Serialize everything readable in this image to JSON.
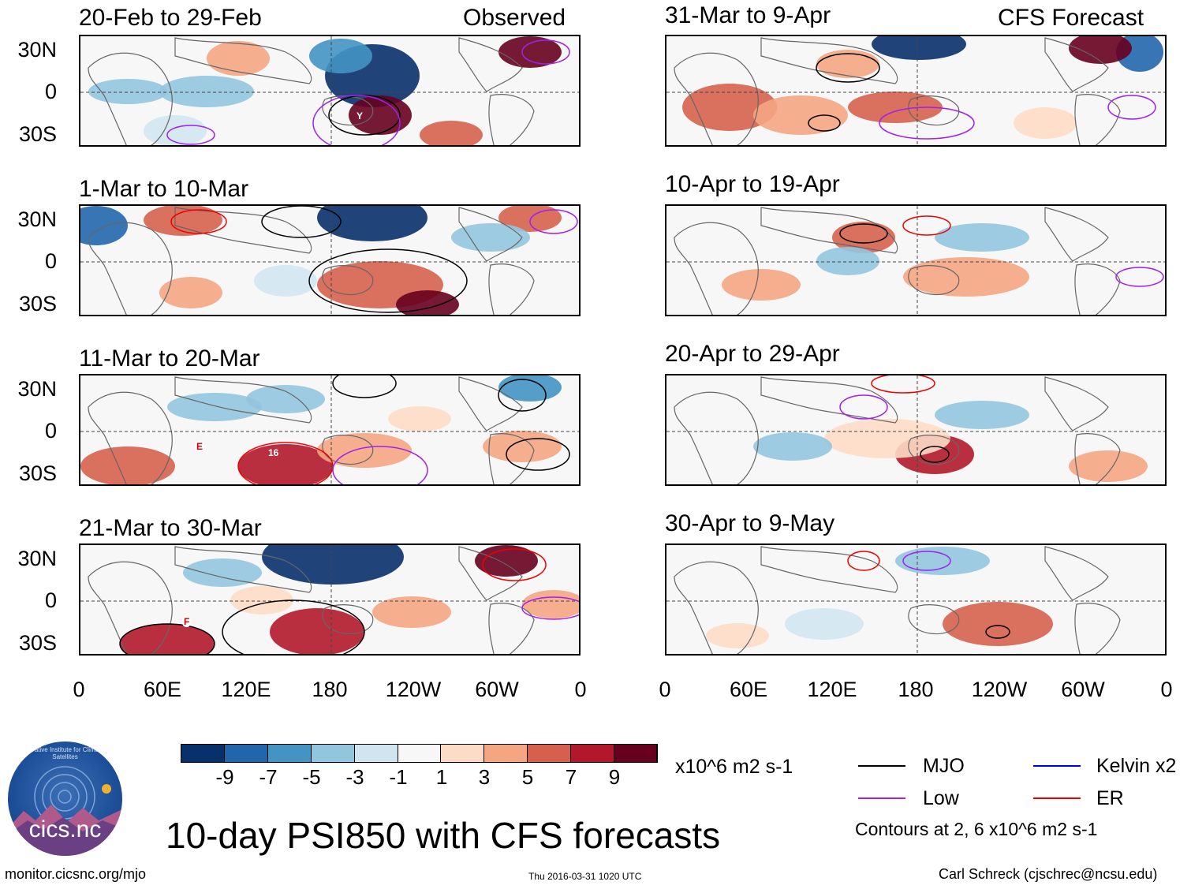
{
  "headers": {
    "left": "Observed",
    "right": "CFS Forecast"
  },
  "left_panels": [
    {
      "title": "20-Feb to 29-Feb"
    },
    {
      "title": "1-Mar to 10-Mar"
    },
    {
      "title": "11-Mar to 20-Mar"
    },
    {
      "title": "21-Mar to 30-Mar"
    }
  ],
  "right_panels": [
    {
      "title": "31-Mar to 9-Apr"
    },
    {
      "title": "10-Apr to 19-Apr"
    },
    {
      "title": "20-Apr to 29-Apr"
    },
    {
      "title": "30-Apr to 9-May"
    }
  ],
  "lat_labels": [
    "30N",
    "0",
    "30S"
  ],
  "lon_labels": [
    "0",
    "60E",
    "120E",
    "180",
    "120W",
    "60W",
    "0"
  ],
  "storm_labels": [
    "Y",
    "E",
    "16",
    "F"
  ],
  "colorbar": {
    "colors": [
      "#08306b",
      "#2166ac",
      "#4393c3",
      "#92c5de",
      "#d1e5f0",
      "#f7f7f7",
      "#fddbc7",
      "#f4a582",
      "#d6604d",
      "#b2182b",
      "#67001f"
    ],
    "labels": [
      "-9",
      "-7",
      "-5",
      "-3",
      "-1",
      "1",
      "3",
      "5",
      "7",
      "9"
    ],
    "units": "x10^6 m2 s-1"
  },
  "legend": {
    "items": [
      {
        "label": "MJO",
        "color": "#000000"
      },
      {
        "label": "Kelvin x2",
        "color": "#0000ee"
      },
      {
        "label": "Low",
        "color": "#a020f0"
      },
      {
        "label": "ER",
        "color": "#ee0000"
      }
    ],
    "note": "Contours at 2, 6 x10^6 m2 s-1"
  },
  "main_title": "10-day PSI850 with CFS forecasts",
  "logo_text": "cics.nc",
  "logo_ring_text": "Cooperative Institute for Climate and Satellites",
  "footer": {
    "left": "monitor.cicsnc.org/mjo",
    "center": "Thu 2016-03-31 1020 UTC",
    "right": "Carl Schreck (cjschrec@ncsu.edu)"
  }
}
